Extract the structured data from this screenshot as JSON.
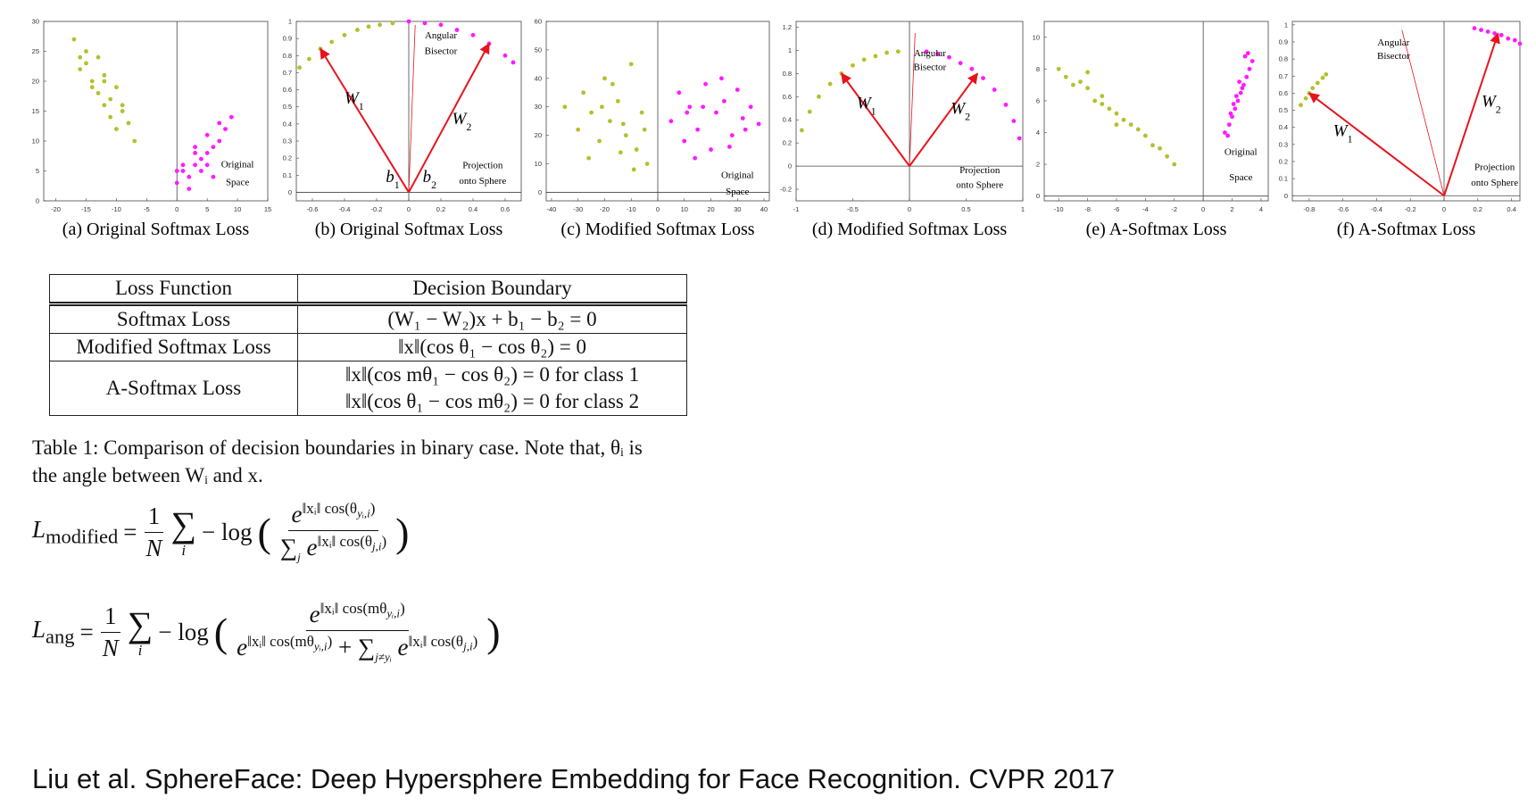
{
  "chart_data": [
    {
      "type": "scatter",
      "caption": "(a) Original Softmax Loss",
      "xlim": [
        -22,
        15
      ],
      "ylim": [
        0,
        30
      ],
      "xticks": [
        -20,
        -15,
        -10,
        -5,
        0,
        5,
        10,
        15
      ],
      "yticks": [
        0,
        5,
        10,
        15,
        20,
        25,
        30
      ],
      "annotations": [
        {
          "text": "Original"
        },
        {
          "text": "Space"
        }
      ],
      "series": [
        {
          "color": "#b4c02c",
          "x": [
            -17,
            -15,
            -13,
            -16,
            -12,
            -10,
            -14,
            -11,
            -9,
            -13,
            -15,
            -8,
            -11,
            -12,
            -10,
            -7,
            -14,
            -16,
            -9,
            -12
          ],
          "values": [
            27,
            25,
            24,
            22,
            21,
            19,
            20,
            17,
            15,
            18,
            23,
            13,
            14,
            16,
            12,
            10,
            19,
            24,
            16,
            20
          ]
        },
        {
          "color": "#ff1aff",
          "x": [
            0,
            1,
            2,
            3,
            4,
            5,
            6,
            7,
            8,
            2,
            3,
            5,
            1,
            4,
            6,
            9,
            0,
            3,
            7,
            5
          ],
          "values": [
            3,
            5,
            4,
            6,
            7,
            8,
            9,
            10,
            12,
            2,
            8,
            11,
            6,
            5,
            4,
            14,
            5,
            9,
            13,
            6
          ]
        }
      ]
    },
    {
      "type": "scatter",
      "caption": "(b) Original Softmax Loss",
      "xlim": [
        -0.7,
        0.7
      ],
      "ylim": [
        -0.05,
        1
      ],
      "xticks": [
        -0.6,
        -0.4,
        -0.2,
        0,
        0.2,
        0.4,
        0.6
      ],
      "yticks": [
        0,
        0.1,
        0.2,
        0.3,
        0.4,
        0.5,
        0.6,
        0.7,
        0.8,
        0.9,
        1
      ],
      "annotations": [
        {
          "text": "Angular"
        },
        {
          "text": "Bisector"
        },
        {
          "text": "Projection"
        },
        {
          "text": "onto Sphere"
        },
        {
          "text": "W",
          "sub": "1"
        },
        {
          "text": "W",
          "sub": "2"
        },
        {
          "text": "b",
          "sub": "1"
        },
        {
          "text": "b",
          "sub": "2"
        }
      ],
      "series": [
        {
          "color": "#b4c02c",
          "x": [
            -0.68,
            -0.62,
            -0.55,
            -0.48,
            -0.4,
            -0.32,
            -0.25,
            -0.18,
            -0.1
          ],
          "values": [
            0.73,
            0.78,
            0.84,
            0.88,
            0.92,
            0.95,
            0.97,
            0.98,
            0.99
          ]
        },
        {
          "color": "#ff1aff",
          "x": [
            0,
            0.1,
            0.2,
            0.3,
            0.4,
            0.5,
            0.6,
            0.65
          ],
          "values": [
            1,
            0.99,
            0.98,
            0.95,
            0.92,
            0.87,
            0.8,
            0.76
          ]
        }
      ]
    },
    {
      "type": "scatter",
      "caption": "(c) Modified Softmax Loss",
      "xlim": [
        -42,
        42
      ],
      "ylim": [
        -3,
        60
      ],
      "xticks": [
        -40,
        -30,
        -20,
        -10,
        0,
        10,
        20,
        30,
        40
      ],
      "yticks": [
        0,
        10,
        20,
        30,
        40,
        50,
        60
      ],
      "annotations": [
        {
          "text": "Original"
        },
        {
          "text": "Space"
        }
      ],
      "series": [
        {
          "color": "#b4c02c",
          "x": [
            -35,
            -30,
            -28,
            -25,
            -22,
            -20,
            -18,
            -15,
            -12,
            -10,
            -8,
            -6,
            -4,
            -26,
            -17,
            -13,
            -9,
            -21,
            -14,
            -5
          ],
          "values": [
            30,
            22,
            35,
            28,
            18,
            40,
            25,
            32,
            20,
            45,
            15,
            28,
            10,
            12,
            38,
            24,
            8,
            30,
            14,
            22
          ]
        },
        {
          "color": "#ff1aff",
          "x": [
            5,
            8,
            10,
            12,
            15,
            18,
            20,
            22,
            25,
            28,
            30,
            32,
            35,
            38,
            14,
            24,
            17,
            27,
            33,
            11
          ],
          "values": [
            25,
            35,
            18,
            30,
            22,
            38,
            15,
            28,
            32,
            20,
            36,
            26,
            30,
            24,
            12,
            40,
            30,
            16,
            22,
            28
          ]
        }
      ]
    },
    {
      "type": "scatter",
      "caption": "(d) Modified Softmax Loss",
      "xlim": [
        -1,
        1
      ],
      "ylim": [
        -0.3,
        1.25
      ],
      "xticks": [
        -1,
        -0.5,
        0,
        0.5,
        1
      ],
      "yticks": [
        -0.2,
        0,
        0.2,
        0.4,
        0.6,
        0.8,
        1,
        1.2
      ],
      "annotations": [
        {
          "text": "Angular"
        },
        {
          "text": "Bisector"
        },
        {
          "text": "Projection"
        },
        {
          "text": "onto Sphere"
        },
        {
          "text": "W",
          "sub": "1"
        },
        {
          "text": "W",
          "sub": "2"
        }
      ],
      "series": [
        {
          "color": "#b4c02c",
          "x": [
            -0.95,
            -0.88,
            -0.8,
            -0.7,
            -0.6,
            -0.5,
            -0.4,
            -0.3,
            -0.2,
            -0.1
          ],
          "values": [
            0.31,
            0.47,
            0.6,
            0.71,
            0.8,
            0.87,
            0.92,
            0.95,
            0.98,
            0.99
          ]
        },
        {
          "color": "#ff1aff",
          "x": [
            0.15,
            0.25,
            0.35,
            0.45,
            0.55,
            0.65,
            0.75,
            0.85,
            0.92,
            0.97
          ],
          "values": [
            0.99,
            0.97,
            0.94,
            0.89,
            0.84,
            0.76,
            0.66,
            0.53,
            0.39,
            0.24
          ]
        }
      ]
    },
    {
      "type": "scatter",
      "caption": "(e) A-Softmax Loss",
      "xlim": [
        -11,
        4.5
      ],
      "ylim": [
        -0.3,
        11
      ],
      "xticks": [
        -10,
        -8,
        -6,
        -4,
        -2,
        0,
        2,
        4
      ],
      "yticks": [
        0,
        2,
        4,
        6,
        8,
        10
      ],
      "annotations": [
        {
          "text": "Original"
        },
        {
          "text": "Space"
        }
      ],
      "series": [
        {
          "color": "#b4c02c",
          "x": [
            -10,
            -9.5,
            -9,
            -8.5,
            -8,
            -7.5,
            -7,
            -6.5,
            -6,
            -5.5,
            -5,
            -4.5,
            -4,
            -3.5,
            -3,
            -2.5,
            -2,
            -8,
            -6,
            -7
          ],
          "values": [
            8,
            7.5,
            7,
            7.2,
            6.8,
            6,
            6.3,
            5.5,
            5.2,
            4.8,
            4.5,
            4.2,
            3.8,
            3.2,
            3,
            2.5,
            2,
            7.8,
            4.5,
            5.8
          ]
        },
        {
          "color": "#ff1aff",
          "x": [
            1.5,
            1.8,
            2,
            2.2,
            2.4,
            2.6,
            2.8,
            3,
            3.2,
            3.4,
            2.1,
            2.5,
            2.9,
            1.7,
            2.3,
            3.1,
            2.7,
            1.9
          ],
          "values": [
            4,
            4.5,
            5,
            5.5,
            6,
            6.5,
            7,
            7.5,
            8,
            8.5,
            5.8,
            7.2,
            8.8,
            3.8,
            6.3,
            9,
            6.8,
            5.2
          ]
        }
      ]
    },
    {
      "type": "scatter",
      "caption": "(f) A-Softmax Loss",
      "xlim": [
        -0.9,
        0.45
      ],
      "ylim": [
        -0.03,
        1.02
      ],
      "xticks": [
        -0.8,
        -0.6,
        -0.4,
        -0.2,
        0,
        0.2,
        0.4
      ],
      "yticks": [
        0,
        0.1,
        0.2,
        0.3,
        0.4,
        0.5,
        0.6,
        0.7,
        0.8,
        0.9,
        1
      ],
      "annotations": [
        {
          "text": "Angular"
        },
        {
          "text": "Bisector"
        },
        {
          "text": "Projection"
        },
        {
          "text": "onto Sphere"
        },
        {
          "text": "W",
          "sub": "1"
        },
        {
          "text": "W",
          "sub": "2"
        }
      ],
      "series": [
        {
          "color": "#b4c02c",
          "x": [
            -0.85,
            -0.82,
            -0.8,
            -0.78,
            -0.75,
            -0.72,
            -0.7
          ],
          "values": [
            0.53,
            0.57,
            0.6,
            0.63,
            0.66,
            0.69,
            0.71
          ]
        },
        {
          "color": "#ff1aff",
          "x": [
            0.18,
            0.22,
            0.26,
            0.3,
            0.34,
            0.38,
            0.42,
            0.45
          ],
          "values": [
            0.98,
            0.97,
            0.96,
            0.95,
            0.94,
            0.92,
            0.91,
            0.89
          ]
        }
      ]
    }
  ],
  "table": {
    "header": [
      "Loss Function",
      "Decision Boundary"
    ],
    "rows": [
      [
        "Softmax Loss",
        [
          "(W₁ − W₂)x + b₁ − b₂ = 0"
        ]
      ],
      [
        "Modified Softmax Loss",
        [
          "‖x‖(cos θ₁ − cos θ₂) = 0"
        ]
      ],
      [
        "A-Softmax Loss",
        [
          "‖x‖(cos mθ₁ − cos θ₂) = 0 for class 1",
          "‖x‖(cos θ₁ − cos mθ₂) = 0 for class 2"
        ]
      ]
    ]
  },
  "caption": [
    "Table 1: Comparison of decision boundaries in binary case. Note that, θᵢ is",
    "the angle between Wᵢ and x."
  ],
  "eq1": {
    "lhs": "L",
    "lhs_sub": "modified",
    "equals": "=",
    "coef_num": "1",
    "coef_den": "N",
    "sum": "∑",
    "sum_sub": "i",
    "log": "− log",
    "open": "(",
    "close": ")",
    "num": [
      {
        "base": "e",
        "exp": "‖xᵢ‖ cos(θ",
        "exp_sub": "yᵢ,i",
        "exp_end": ")"
      }
    ],
    "den": [
      {
        "pre": "∑",
        "pre_sub": "j",
        "base": "e",
        "exp": "‖xᵢ‖ cos(θ",
        "exp_sub": "j,i",
        "exp_end": ")"
      }
    ]
  },
  "eq2": {
    "lhs": "L",
    "lhs_sub": "ang",
    "equals": "=",
    "coef_num": "1",
    "coef_den": "N",
    "sum": "∑",
    "sum_sub": "i",
    "log": "− log",
    "open": "(",
    "close": ")",
    "num": [
      {
        "base": "e",
        "exp": "‖xᵢ‖ cos(mθ",
        "exp_sub": "yᵢ,i",
        "exp_end": ")"
      }
    ],
    "den": [
      {
        "base": "e",
        "exp": "‖xᵢ‖ cos(mθ",
        "exp_sub": "yᵢ,i",
        "exp_end": ")"
      },
      {
        "pre": "+ ∑",
        "pre_sub": "j≠yᵢ",
        "base": "e",
        "exp": "‖xᵢ‖ cos(θ",
        "exp_sub": "j,i",
        "exp_end": ")"
      }
    ]
  },
  "citation": "Liu et al. SphereFace: Deep Hypersphere Embedding for Face Recognition. CVPR 2017"
}
